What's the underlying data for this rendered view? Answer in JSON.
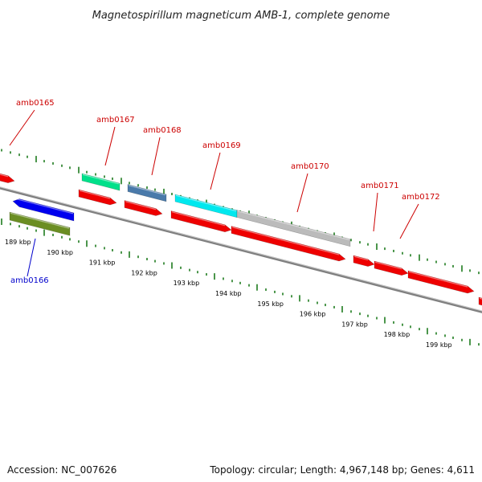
{
  "title": "Magnetospirillum magneticum AMB-1, complete genome",
  "footer": {
    "accession": "Accession: NC_007626",
    "summary": "Topology: circular; Length: 4,967,148 bp; Genes: 4,611"
  },
  "colors": {
    "backbone": "#808080",
    "tick": "#1e7b1e",
    "forward_label": "#cc0000",
    "reverse_label": "#0000cc"
  },
  "scale_labels": [
    "189 kbp",
    "190 kbp",
    "191 kbp",
    "192 kbp",
    "193 kbp",
    "194 kbp",
    "195 kbp",
    "196 kbp",
    "197 kbp",
    "198 kbp",
    "199 kbp"
  ],
  "gene_labels": [
    {
      "text": "amb0165",
      "strand": "forward"
    },
    {
      "text": "amb0167",
      "strand": "forward"
    },
    {
      "text": "amb0168",
      "strand": "forward"
    },
    {
      "text": "amb0169",
      "strand": "forward"
    },
    {
      "text": "amb0170",
      "strand": "forward"
    },
    {
      "text": "amb0171",
      "strand": "forward"
    },
    {
      "text": "amb0172",
      "strand": "forward"
    },
    {
      "text": "amb0166",
      "strand": "reverse"
    }
  ],
  "features": [
    {
      "color": "#ee0000",
      "direction": "forward"
    },
    {
      "color": "#ee0000",
      "direction": "forward"
    },
    {
      "color": "#ee0000",
      "direction": "forward"
    },
    {
      "color": "#ee0000",
      "direction": "forward"
    },
    {
      "color": "#ee0000",
      "direction": "forward"
    },
    {
      "color": "#ee0000",
      "direction": "forward"
    },
    {
      "color": "#ee0000",
      "direction": "forward"
    },
    {
      "color": "#ee0000",
      "direction": "forward"
    },
    {
      "color": "#ee0000",
      "direction": "forward"
    },
    {
      "color": "#0000ee",
      "direction": "reverse"
    },
    {
      "color": "#6b8e23",
      "direction": "none"
    },
    {
      "color": "#00e08a",
      "direction": "none"
    },
    {
      "color": "#4a7aaa",
      "direction": "none"
    },
    {
      "color": "#00e8ee",
      "direction": "none"
    },
    {
      "color": "#bbbbbb",
      "direction": "none"
    }
  ]
}
